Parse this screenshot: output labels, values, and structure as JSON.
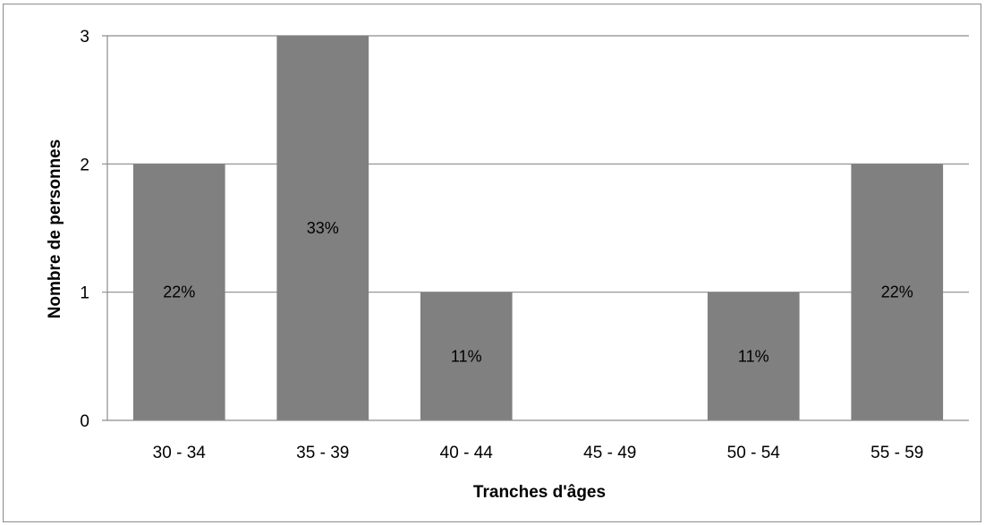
{
  "chart_data": {
    "type": "bar",
    "categories": [
      "30 - 34",
      "35 - 39",
      "40 - 44",
      "45 - 49",
      "50 - 54",
      "55 - 59"
    ],
    "values": [
      2,
      3,
      1,
      0,
      1,
      2
    ],
    "data_labels": [
      "22%",
      "33%",
      "11%",
      "",
      "11%",
      "22%"
    ],
    "xlabel": "Tranches d'âges",
    "ylabel": "Nombre de personnes",
    "ylim": [
      0,
      3
    ],
    "yticks": [
      0,
      1,
      2,
      3
    ],
    "grid": true,
    "legend": "none",
    "colors": {
      "bar": "#808080",
      "grid": "#8c8c8c",
      "frame": "#8c8c8c",
      "text": "#000000"
    }
  }
}
